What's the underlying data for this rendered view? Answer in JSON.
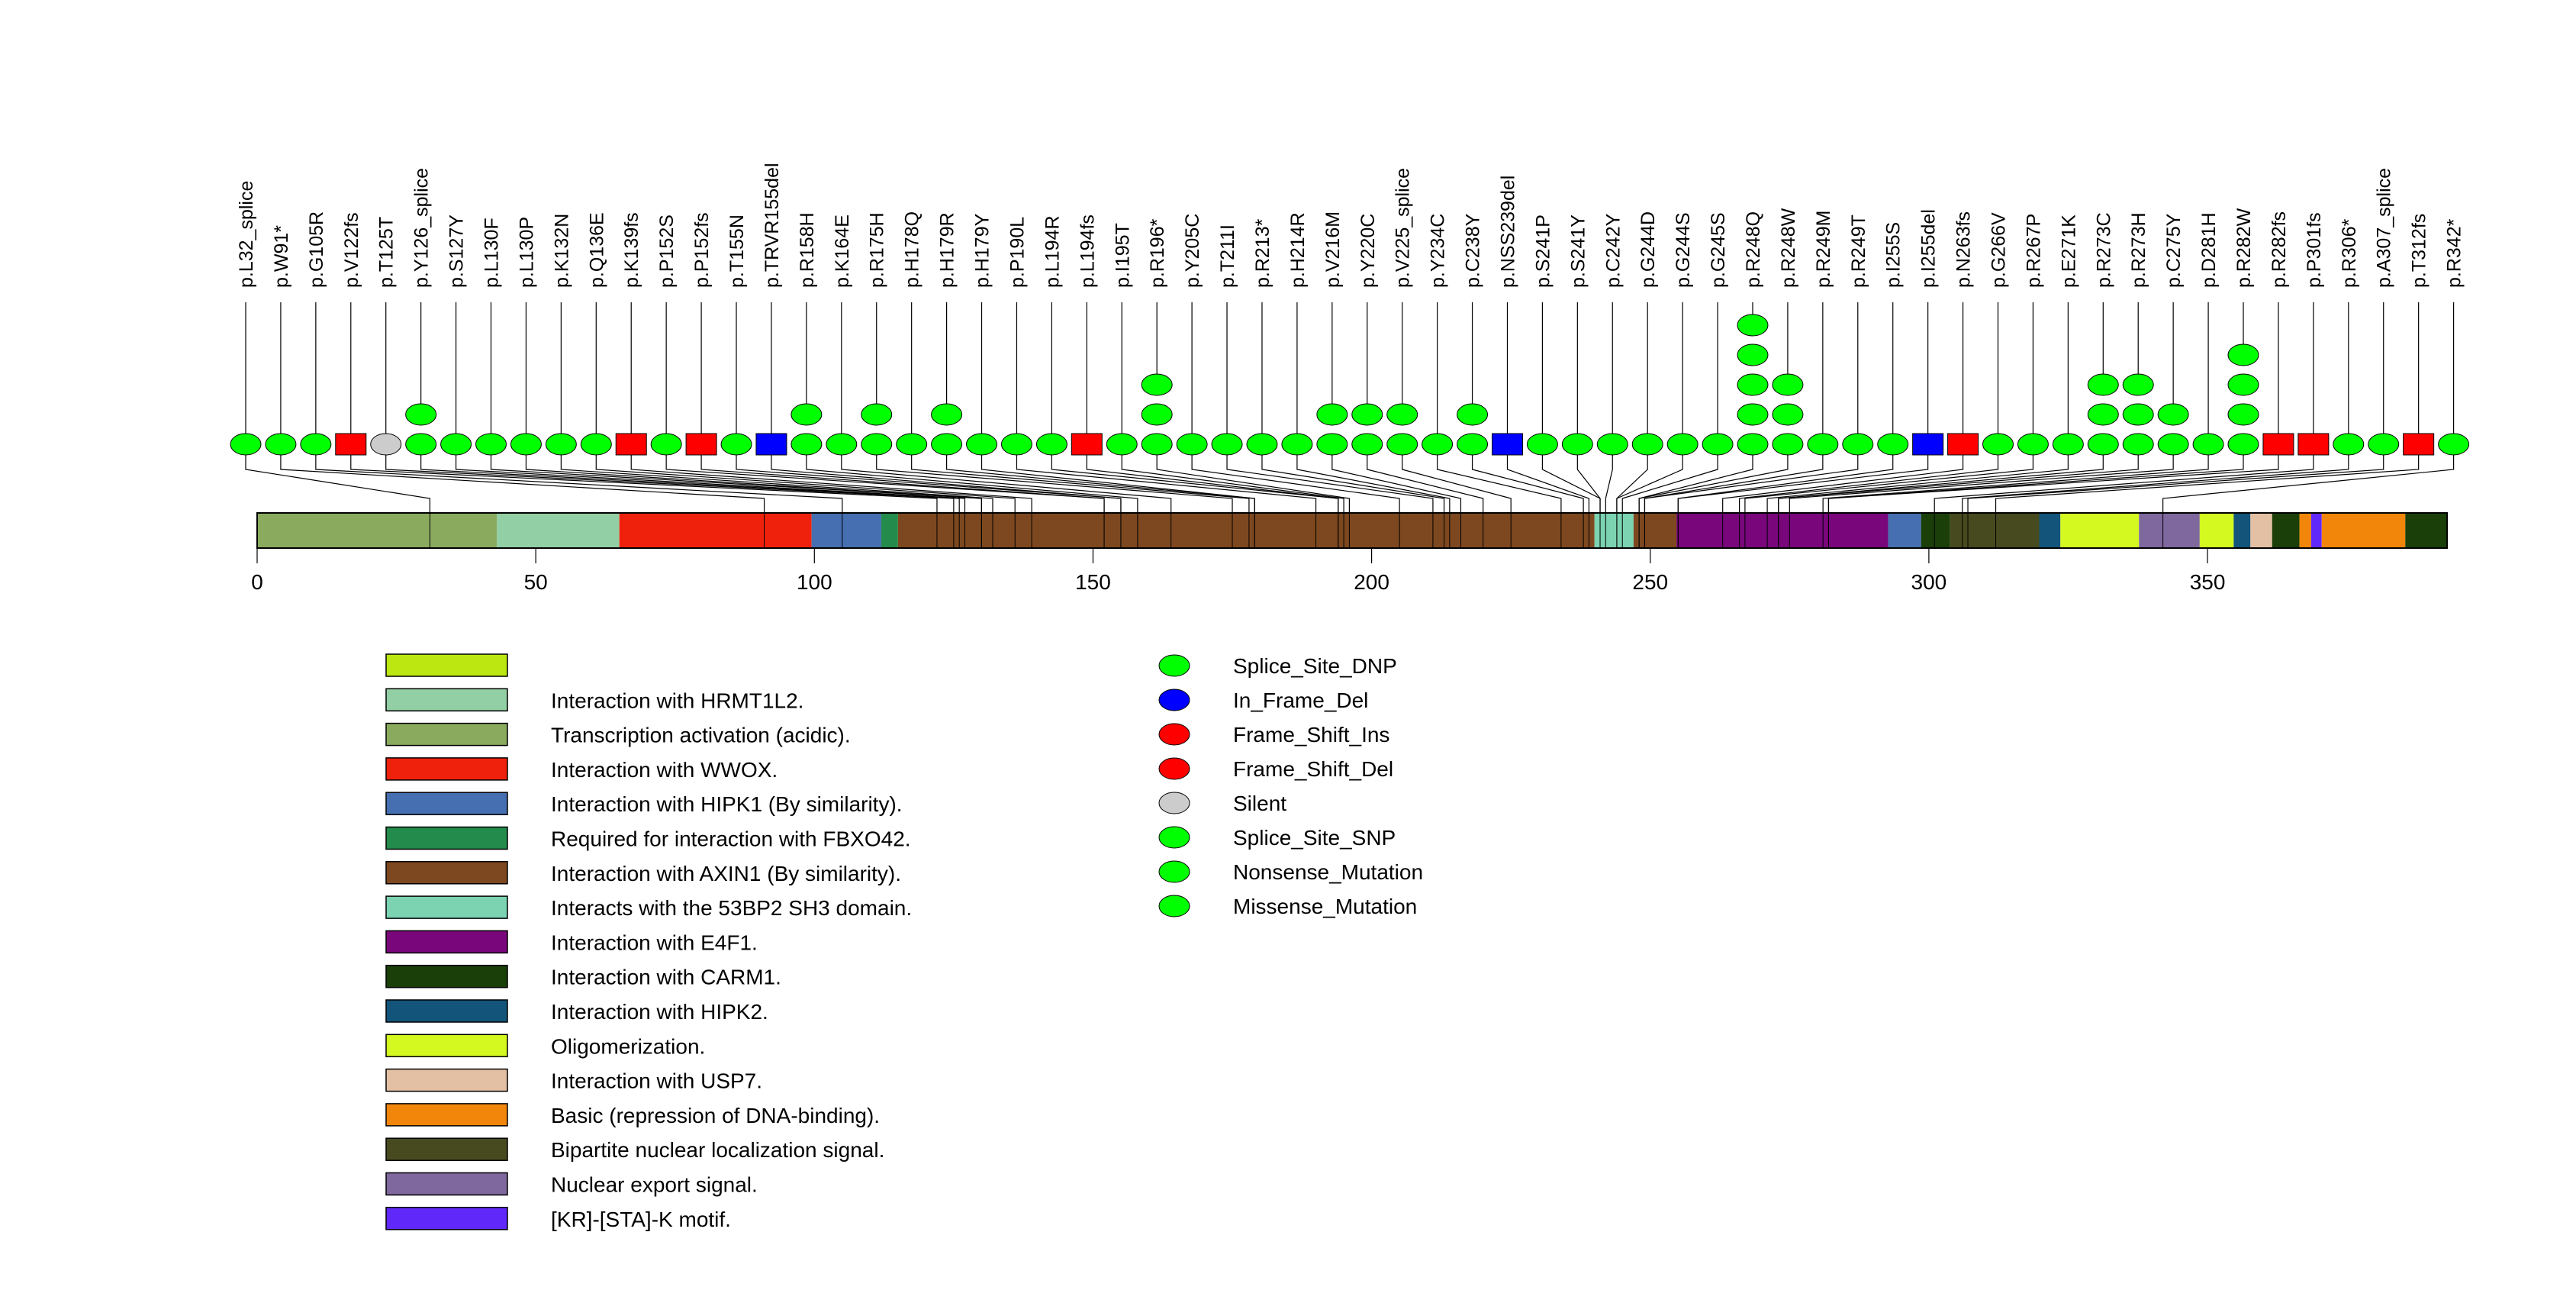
{
  "chart_data": {
    "type": "lollipop",
    "title": "",
    "xlabel": "",
    "ylabel": "",
    "protein_length": 393,
    "xlim": [
      0,
      393
    ],
    "x_ticks": [
      0,
      50,
      100,
      150,
      200,
      250,
      300,
      350
    ],
    "mutation_types": [
      {
        "name": "Splice_Site_DNP",
        "color": "#00ff00"
      },
      {
        "name": "In_Frame_Del",
        "color": "#0000ff"
      },
      {
        "name": "Frame_Shift_Ins",
        "color": "#ff0000"
      },
      {
        "name": "Frame_Shift_Del",
        "color": "#ff0000"
      },
      {
        "name": "Silent",
        "color": "#cccccc"
      },
      {
        "name": "Splice_Site_SNP",
        "color": "#00ff00"
      },
      {
        "name": "Nonsense_Mutation",
        "color": "#00ff00"
      },
      {
        "name": "Missense_Mutation",
        "color": "#00ff00"
      }
    ],
    "mutations": [
      {
        "label": "p.L32_splice",
        "pos": 31,
        "count": 1,
        "type": "Splice_Site_SNP"
      },
      {
        "label": "p.W91*",
        "pos": 91,
        "count": 1,
        "type": "Nonsense_Mutation"
      },
      {
        "label": "p.G105R",
        "pos": 105,
        "count": 1,
        "type": "Missense_Mutation"
      },
      {
        "label": "p.V122fs",
        "pos": 122,
        "count": 1,
        "type": "Frame_Shift_Del"
      },
      {
        "label": "p.T125T",
        "pos": 125,
        "count": 1,
        "type": "Silent"
      },
      {
        "label": "p.Y126_splice",
        "pos": 126,
        "count": 2,
        "type": "Splice_Site_SNP"
      },
      {
        "label": "p.S127Y",
        "pos": 127,
        "count": 1,
        "type": "Missense_Mutation"
      },
      {
        "label": "p.L130F",
        "pos": 130,
        "count": 1,
        "type": "Missense_Mutation"
      },
      {
        "label": "p.L130P",
        "pos": 130,
        "count": 1,
        "type": "Missense_Mutation"
      },
      {
        "label": "p.K132N",
        "pos": 132,
        "count": 1,
        "type": "Missense_Mutation"
      },
      {
        "label": "p.Q136E",
        "pos": 136,
        "count": 1,
        "type": "Missense_Mutation"
      },
      {
        "label": "p.K139fs",
        "pos": 139,
        "count": 1,
        "type": "Frame_Shift_Del"
      },
      {
        "label": "p.P152S",
        "pos": 152,
        "count": 1,
        "type": "Missense_Mutation"
      },
      {
        "label": "p.P152fs",
        "pos": 152,
        "count": 1,
        "type": "Frame_Shift_Del"
      },
      {
        "label": "p.T155N",
        "pos": 155,
        "count": 1,
        "type": "Missense_Mutation"
      },
      {
        "label": "p.TRVR155del",
        "pos": 155,
        "count": 1,
        "type": "In_Frame_Del"
      },
      {
        "label": "p.R158H",
        "pos": 158,
        "count": 2,
        "type": "Missense_Mutation"
      },
      {
        "label": "p.K164E",
        "pos": 164,
        "count": 1,
        "type": "Missense_Mutation"
      },
      {
        "label": "p.R175H",
        "pos": 175,
        "count": 2,
        "type": "Missense_Mutation"
      },
      {
        "label": "p.H178Q",
        "pos": 178,
        "count": 1,
        "type": "Missense_Mutation"
      },
      {
        "label": "p.H179R",
        "pos": 179,
        "count": 2,
        "type": "Missense_Mutation"
      },
      {
        "label": "p.H179Y",
        "pos": 179,
        "count": 1,
        "type": "Missense_Mutation"
      },
      {
        "label": "p.P190L",
        "pos": 190,
        "count": 1,
        "type": "Missense_Mutation"
      },
      {
        "label": "p.L194R",
        "pos": 194,
        "count": 1,
        "type": "Missense_Mutation"
      },
      {
        "label": "p.L194fs",
        "pos": 194,
        "count": 1,
        "type": "Frame_Shift_Del"
      },
      {
        "label": "p.I195T",
        "pos": 195,
        "count": 1,
        "type": "Missense_Mutation"
      },
      {
        "label": "p.R196*",
        "pos": 196,
        "count": 3,
        "type": "Nonsense_Mutation"
      },
      {
        "label": "p.Y205C",
        "pos": 205,
        "count": 1,
        "type": "Missense_Mutation"
      },
      {
        "label": "p.T211I",
        "pos": 211,
        "count": 1,
        "type": "Missense_Mutation"
      },
      {
        "label": "p.R213*",
        "pos": 213,
        "count": 1,
        "type": "Nonsense_Mutation"
      },
      {
        "label": "p.H214R",
        "pos": 214,
        "count": 1,
        "type": "Missense_Mutation"
      },
      {
        "label": "p.V216M",
        "pos": 216,
        "count": 2,
        "type": "Missense_Mutation"
      },
      {
        "label": "p.Y220C",
        "pos": 220,
        "count": 2,
        "type": "Missense_Mutation"
      },
      {
        "label": "p.V225_splice",
        "pos": 225,
        "count": 2,
        "type": "Splice_Site_SNP"
      },
      {
        "label": "p.Y234C",
        "pos": 234,
        "count": 1,
        "type": "Missense_Mutation"
      },
      {
        "label": "p.C238Y",
        "pos": 238,
        "count": 2,
        "type": "Missense_Mutation"
      },
      {
        "label": "p.NSS239del",
        "pos": 239,
        "count": 1,
        "type": "In_Frame_Del"
      },
      {
        "label": "p.S241P",
        "pos": 241,
        "count": 1,
        "type": "Missense_Mutation"
      },
      {
        "label": "p.S241Y",
        "pos": 241,
        "count": 1,
        "type": "Missense_Mutation"
      },
      {
        "label": "p.C242Y",
        "pos": 242,
        "count": 1,
        "type": "Missense_Mutation"
      },
      {
        "label": "p.G244D",
        "pos": 244,
        "count": 1,
        "type": "Missense_Mutation"
      },
      {
        "label": "p.G244S",
        "pos": 244,
        "count": 1,
        "type": "Missense_Mutation"
      },
      {
        "label": "p.G245S",
        "pos": 245,
        "count": 1,
        "type": "Missense_Mutation"
      },
      {
        "label": "p.R248Q",
        "pos": 248,
        "count": 5,
        "type": "Missense_Mutation"
      },
      {
        "label": "p.R248W",
        "pos": 248,
        "count": 3,
        "type": "Missense_Mutation"
      },
      {
        "label": "p.R249M",
        "pos": 249,
        "count": 1,
        "type": "Missense_Mutation"
      },
      {
        "label": "p.R249T",
        "pos": 249,
        "count": 1,
        "type": "Missense_Mutation"
      },
      {
        "label": "p.I255S",
        "pos": 255,
        "count": 1,
        "type": "Missense_Mutation"
      },
      {
        "label": "p.I255del",
        "pos": 255,
        "count": 1,
        "type": "In_Frame_Del"
      },
      {
        "label": "p.N263fs",
        "pos": 263,
        "count": 1,
        "type": "Frame_Shift_Del"
      },
      {
        "label": "p.G266V",
        "pos": 266,
        "count": 1,
        "type": "Missense_Mutation"
      },
      {
        "label": "p.R267P",
        "pos": 267,
        "count": 1,
        "type": "Missense_Mutation"
      },
      {
        "label": "p.E271K",
        "pos": 271,
        "count": 1,
        "type": "Missense_Mutation"
      },
      {
        "label": "p.R273C",
        "pos": 273,
        "count": 3,
        "type": "Missense_Mutation"
      },
      {
        "label": "p.R273H",
        "pos": 273,
        "count": 3,
        "type": "Missense_Mutation"
      },
      {
        "label": "p.C275Y",
        "pos": 275,
        "count": 2,
        "type": "Missense_Mutation"
      },
      {
        "label": "p.D281H",
        "pos": 281,
        "count": 1,
        "type": "Missense_Mutation"
      },
      {
        "label": "p.R282W",
        "pos": 282,
        "count": 4,
        "type": "Missense_Mutation"
      },
      {
        "label": "p.R282fs",
        "pos": 282,
        "count": 1,
        "type": "Frame_Shift_Del"
      },
      {
        "label": "p.P301fs",
        "pos": 301,
        "count": 1,
        "type": "Frame_Shift_Del"
      },
      {
        "label": "p.R306*",
        "pos": 306,
        "count": 1,
        "type": "Nonsense_Mutation"
      },
      {
        "label": "p.A307_splice",
        "pos": 307,
        "count": 1,
        "type": "Splice_Site_SNP"
      },
      {
        "label": "p.T312fs",
        "pos": 312,
        "count": 1,
        "type": "Frame_Shift_Del"
      },
      {
        "label": "p.R342*",
        "pos": 342,
        "count": 1,
        "type": "Nonsense_Mutation"
      }
    ],
    "domain_segments": [
      {
        "start": 0,
        "end": 43,
        "color": "#8aab5e"
      },
      {
        "start": 43,
        "end": 65,
        "color": "#93cfa5"
      },
      {
        "start": 65,
        "end": 99.5,
        "color": "#ef210c"
      },
      {
        "start": 99.5,
        "end": 112,
        "color": "#456fb0"
      },
      {
        "start": 112,
        "end": 115,
        "color": "#238b4b"
      },
      {
        "start": 115,
        "end": 240,
        "color": "#7d481f"
      },
      {
        "start": 240,
        "end": 247,
        "color": "#7bd3b2"
      },
      {
        "start": 247,
        "end": 254.7,
        "color": "#7d481f"
      },
      {
        "start": 254.7,
        "end": 292.7,
        "color": "#79077b"
      },
      {
        "start": 292.7,
        "end": 298.6,
        "color": "#456fb0"
      },
      {
        "start": 298.6,
        "end": 303.8,
        "color": "#1a3f08"
      },
      {
        "start": 303.8,
        "end": 319.8,
        "color": "#474a1f"
      },
      {
        "start": 319.8,
        "end": 323.6,
        "color": "#13547a"
      },
      {
        "start": 323.6,
        "end": 337.7,
        "color": "#d3f920"
      },
      {
        "start": 337.7,
        "end": 348.6,
        "color": "#7e689d"
      },
      {
        "start": 348.6,
        "end": 354.7,
        "color": "#d3f920"
      },
      {
        "start": 354.7,
        "end": 357.7,
        "color": "#13547a"
      },
      {
        "start": 357.7,
        "end": 361.6,
        "color": "#e3c0a4"
      },
      {
        "start": 361.6,
        "end": 366.5,
        "color": "#1a3f08"
      },
      {
        "start": 366.5,
        "end": 368.6,
        "color": "#f2860a"
      },
      {
        "start": 368.6,
        "end": 370.5,
        "color": "#6128fa"
      },
      {
        "start": 370.5,
        "end": 385.5,
        "color": "#f2860a"
      },
      {
        "start": 385.5,
        "end": 393,
        "color": "#1a3f08"
      }
    ],
    "domain_legend": [
      {
        "label": "",
        "color": "#bde710"
      },
      {
        "label": "Interaction with HRMT1L2.",
        "color": "#93cfa5"
      },
      {
        "label": "Transcription activation (acidic).",
        "color": "#8aab5e"
      },
      {
        "label": "Interaction with WWOX.",
        "color": "#ef210c"
      },
      {
        "label": "Interaction with HIPK1 (By similarity).",
        "color": "#456fb0"
      },
      {
        "label": "Required for interaction with FBXO42.",
        "color": "#238b4b"
      },
      {
        "label": "Interaction with AXIN1 (By similarity).",
        "color": "#7d481f"
      },
      {
        "label": "Interacts with the 53BP2 SH3 domain.",
        "color": "#7bd3b2"
      },
      {
        "label": "Interaction with E4F1.",
        "color": "#79077b"
      },
      {
        "label": "Interaction with CARM1.",
        "color": "#1a3f08"
      },
      {
        "label": "Interaction with HIPK2.",
        "color": "#13547a"
      },
      {
        "label": "Oligomerization.",
        "color": "#d3f920"
      },
      {
        "label": "Interaction with USP7.",
        "color": "#e3c0a4"
      },
      {
        "label": "Basic (repression of DNA-binding).",
        "color": "#f2860a"
      },
      {
        "label": "Bipartite nuclear localization signal.",
        "color": "#474a1f"
      },
      {
        "label": "Nuclear export signal.",
        "color": "#7e689d"
      },
      {
        "label": "[KR]-[STA]-K motif.",
        "color": "#6128fa"
      }
    ],
    "legend_placement": "bottom"
  }
}
